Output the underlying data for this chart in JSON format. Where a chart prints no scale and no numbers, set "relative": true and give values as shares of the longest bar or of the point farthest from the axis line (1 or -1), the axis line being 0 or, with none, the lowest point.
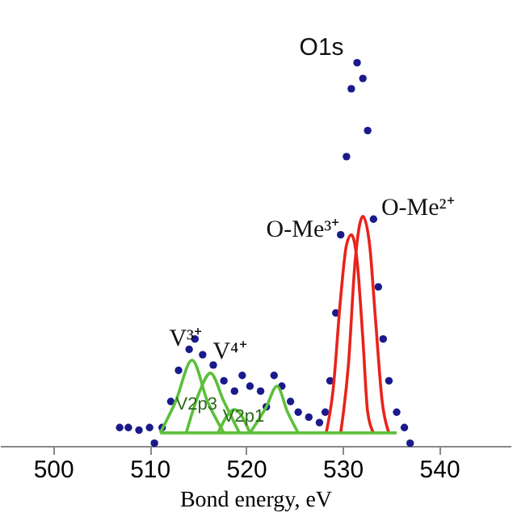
{
  "chart_data": {
    "type": "scatter",
    "xlabel": "Bond energy, eV",
    "relative": true,
    "xlim": [
      494.5,
      547.4
    ],
    "xticks": [
      500,
      510,
      520,
      530,
      540
    ],
    "grid": false,
    "tick_labels": "x",
    "series": [
      {
        "marker": "circle",
        "color": "#1a1a8c",
        "x": [
          506.9,
          507.8,
          508.9,
          510.0,
          510.5,
          511.3,
          512.2,
          513.0,
          514.1,
          514.7,
          515.5,
          516.6,
          517.7,
          518.8,
          519.6,
          520.4,
          521.5,
          522.1,
          522.9,
          523.7,
          524.6,
          525.4,
          526.5,
          527.6,
          528.2,
          528.7,
          529.3,
          529.8,
          530.4,
          530.9,
          531.5,
          532.1,
          532.6,
          533.2,
          533.7,
          534.2,
          534.8,
          535.6,
          536.4,
          537.0
        ],
        "values": [
          0.048,
          0.048,
          0.041,
          0.048,
          0.007,
          0.048,
          0.116,
          0.197,
          0.252,
          0.279,
          0.238,
          0.211,
          0.17,
          0.143,
          0.184,
          0.156,
          0.143,
          0.102,
          0.184,
          0.156,
          0.116,
          0.088,
          0.075,
          0.061,
          0.088,
          0.17,
          0.347,
          0.551,
          0.755,
          0.932,
          1.0,
          0.959,
          0.823,
          0.592,
          0.415,
          0.279,
          0.17,
          0.088,
          0.048,
          0.007
        ]
      },
      {
        "type": "line",
        "color": "#e8231b",
        "x": [
          528.3,
          529.0,
          529.8,
          530.4,
          530.9,
          531.5,
          532.1,
          532.6,
          533.2
        ],
        "values": [
          0.034,
          0.143,
          0.388,
          0.524,
          0.551,
          0.483,
          0.279,
          0.088,
          0.034
        ]
      },
      {
        "type": "line",
        "color": "#e8231b",
        "x": [
          529.8,
          530.6,
          531.3,
          532.1,
          532.8,
          533.4,
          534.1,
          534.8
        ],
        "values": [
          0.034,
          0.211,
          0.483,
          0.599,
          0.524,
          0.333,
          0.116,
          0.034
        ]
      },
      {
        "type": "line",
        "color": "#5cbf3a",
        "x": [
          511.1,
          512.7,
          514.4,
          516.0,
          517.7
        ],
        "values": [
          0.034,
          0.116,
          0.224,
          0.116,
          0.034
        ]
      },
      {
        "type": "line",
        "color": "#5cbf3a",
        "x": [
          513.8,
          515.2,
          516.3,
          517.7,
          519.3
        ],
        "values": [
          0.034,
          0.143,
          0.19,
          0.116,
          0.034
        ]
      },
      {
        "type": "line",
        "color": "#5cbf3a",
        "x": [
          517.1,
          518.8,
          520.4
        ],
        "values": [
          0.034,
          0.095,
          0.034
        ]
      },
      {
        "type": "line",
        "color": "#5cbf3a",
        "x": [
          520.4,
          522.1,
          523.2,
          524.3,
          525.4
        ],
        "values": [
          0.034,
          0.102,
          0.156,
          0.088,
          0.034
        ]
      },
      {
        "type": "line",
        "color": "#5cbf3a",
        "x": [
          511.1,
          535.6
        ],
        "values": [
          0.034,
          0.034
        ]
      }
    ],
    "annotations": [
      {
        "text": "O1s",
        "x": 531.5,
        "y": 1.0
      },
      {
        "text": "O-Me³⁺",
        "x": 530.9,
        "y": 0.551
      },
      {
        "text": "O-Me²⁺",
        "x": 532.1,
        "y": 0.599
      },
      {
        "text": "V³⁺",
        "x": 514.4,
        "y": 0.224
      },
      {
        "text": "V⁴⁺",
        "x": 516.3,
        "y": 0.19
      },
      {
        "text": "V2p3",
        "x": 515.2,
        "y": 0.1
      },
      {
        "text": "V2p1",
        "x": 520.4,
        "y": 0.06
      }
    ]
  }
}
